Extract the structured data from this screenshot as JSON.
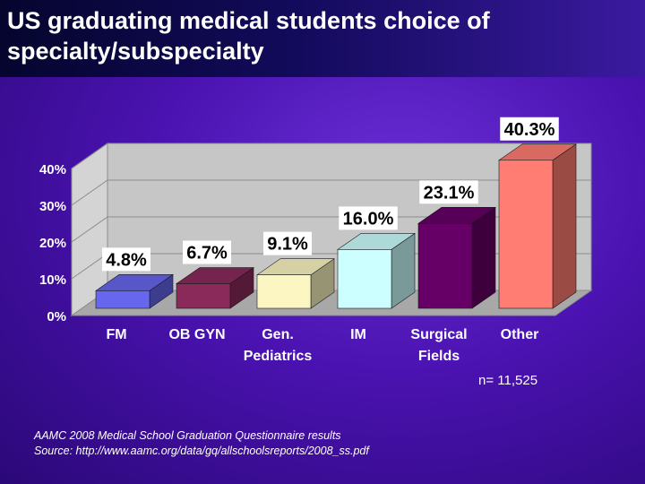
{
  "slide": {
    "title": "US graduating medical students choice of specialty/subspecialty",
    "n_note": "n= 11,525",
    "source_line1": "AAMC 2008 Medical School Graduation Questionnaire results",
    "source_line2": "Source: http://www.aamc.org/data/gq/allschoolsreports/2008_ss.pdf"
  },
  "chart_data": {
    "type": "bar",
    "categories": [
      "FM",
      "OB GYN",
      "Gen. Pediatrics",
      "IM",
      "Surgical Fields",
      "Other"
    ],
    "values": [
      4.8,
      6.7,
      9.1,
      16.0,
      23.1,
      40.3
    ],
    "data_labels": [
      "4.8%",
      "6.7%",
      "9.1%",
      "16.0%",
      "23.1%",
      "40.3%"
    ],
    "yticks": [
      "0%",
      "10%",
      "20%",
      "30%",
      "40%"
    ],
    "ylim": [
      0,
      40
    ],
    "grid": true,
    "legend": "none",
    "colors": [
      "#6666ee",
      "#8a2a5a",
      "#fbf6c2",
      "#ccffff",
      "#660066",
      "#ff7d72"
    ]
  }
}
